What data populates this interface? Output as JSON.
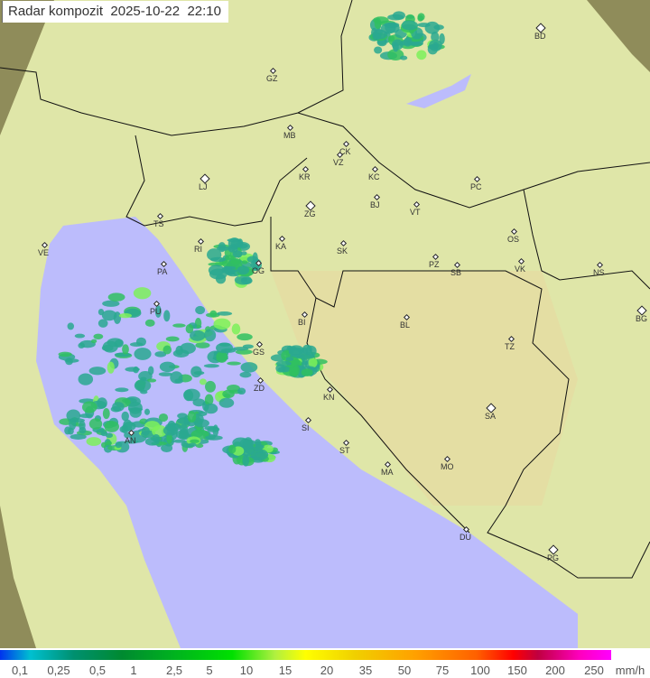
{
  "title": "Radar kompozit  2025-10-22  22:10",
  "legend": {
    "ticks": [
      "0,1",
      "0,25",
      "0,5",
      "1",
      "2,5",
      "5",
      "10",
      "15",
      "20",
      "35",
      "50",
      "75",
      "100",
      "150",
      "200",
      "250"
    ],
    "unit": "mm/h"
  },
  "colors": {
    "sea": "#bcbcfc",
    "land": "#dfe6a8",
    "outside": "#8f8c5a",
    "rain_light": "#2aa890",
    "rain_mid": "#30c060",
    "rain_high": "#7df05a"
  },
  "cities": [
    "GZ",
    "BD",
    "MB",
    "CK",
    "VZ",
    "KR",
    "KC",
    "PC",
    "LJ",
    "BJ",
    "VT",
    "ZG",
    "TS",
    "OS",
    "VE",
    "RI",
    "KA",
    "SK",
    "PZ",
    "SB",
    "VK",
    "NS",
    "PA",
    "OG",
    "PU",
    "BI",
    "BL",
    "BG",
    "TZ",
    "GS",
    "ZD",
    "KN",
    "SA",
    "SI",
    "AN",
    "ST",
    "MO",
    "MA",
    "DU",
    "PG"
  ]
}
